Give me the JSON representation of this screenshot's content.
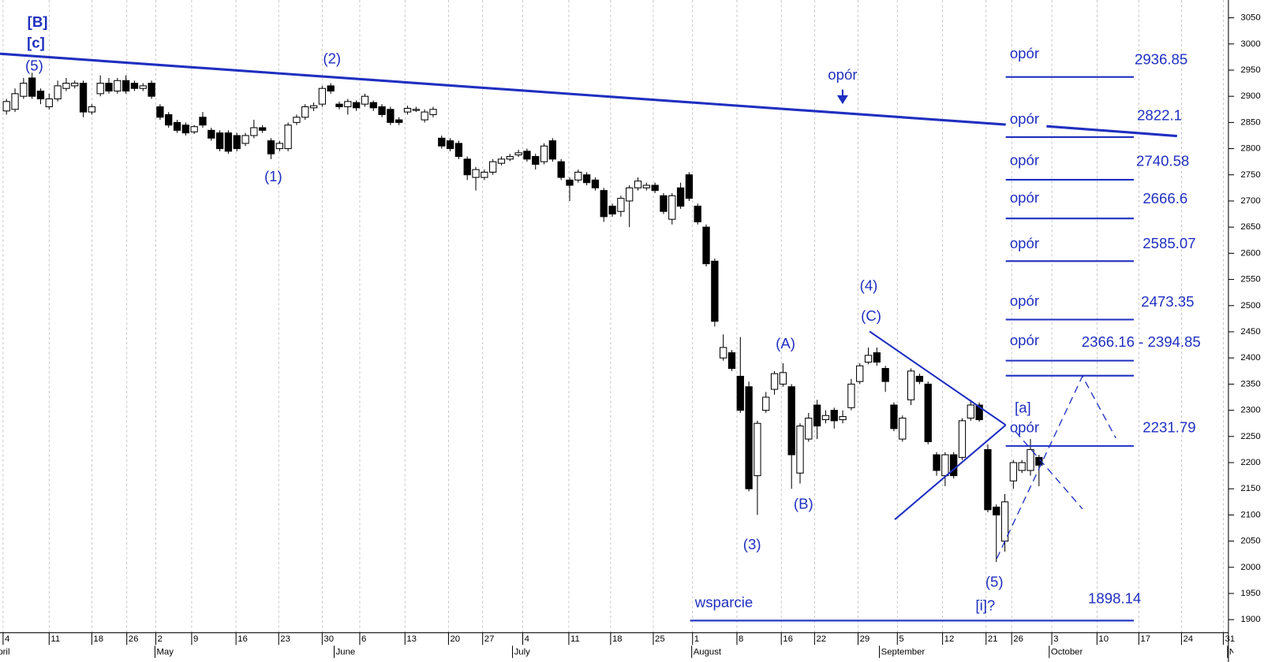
{
  "chart_data": {
    "type": "candlestick",
    "open": [
      2872,
      2875,
      2900,
      2935,
      2910,
      2880,
      2895,
      2915,
      2920,
      2925,
      2870,
      2905,
      2925,
      2910,
      2930,
      2925,
      2915,
      2925,
      2880,
      2865,
      2850,
      2845,
      2832,
      2860,
      2835,
      2830,
      2830,
      2825,
      2810,
      2825,
      2840,
      2815,
      2800,
      2800,
      2850,
      2860,
      2878,
      2885,
      2920,
      2885,
      2880,
      2888,
      2885,
      2888,
      2880,
      2875,
      2855,
      2870,
      2873,
      2855,
      2865,
      2820,
      2815,
      2810,
      2780,
      2745,
      2745,
      2755,
      2772,
      2780,
      2788,
      2795,
      2785,
      2775,
      2815,
      2775,
      2740,
      2740,
      2750,
      2740,
      2720,
      2690,
      2680,
      2700,
      2725,
      2725,
      2730,
      2710,
      2665,
      2725,
      2750,
      2690,
      2650,
      2585,
      2400,
      2410,
      2365,
      2345,
      2175,
      2300,
      2340,
      2350,
      2345,
      2180,
      2245,
      2310,
      2282,
      2300,
      2282,
      2305,
      2355,
      2392,
      2410,
      2380,
      2310,
      2245,
      2320,
      2365,
      2350,
      2215,
      2175,
      2215,
      2210,
      2285,
      2310,
      2225,
      2115,
      2050,
      2165,
      2185,
      2185,
      2210
    ],
    "high": [
      2895,
      2915,
      2935,
      2945,
      2915,
      2905,
      2930,
      2935,
      2930,
      2930,
      2885,
      2940,
      2935,
      2935,
      2940,
      2930,
      2925,
      2930,
      2885,
      2870,
      2855,
      2850,
      2845,
      2870,
      2840,
      2835,
      2835,
      2830,
      2830,
      2855,
      2845,
      2820,
      2815,
      2850,
      2865,
      2885,
      2888,
      2920,
      2925,
      2890,
      2895,
      2892,
      2905,
      2892,
      2885,
      2880,
      2860,
      2882,
      2880,
      2875,
      2880,
      2825,
      2820,
      2815,
      2785,
      2765,
      2760,
      2780,
      2785,
      2790,
      2798,
      2800,
      2790,
      2810,
      2820,
      2780,
      2745,
      2760,
      2755,
      2745,
      2725,
      2695,
      2710,
      2730,
      2745,
      2735,
      2735,
      2715,
      2715,
      2735,
      2755,
      2695,
      2655,
      2590,
      2445,
      2415,
      2440,
      2355,
      2280,
      2335,
      2375,
      2390,
      2350,
      2275,
      2295,
      2320,
      2300,
      2305,
      2300,
      2360,
      2390,
      2420,
      2420,
      2385,
      2315,
      2290,
      2380,
      2370,
      2355,
      2220,
      2220,
      2220,
      2285,
      2320,
      2315,
      2235,
      2120,
      2140,
      2205,
      2205,
      2245,
      2215
    ],
    "low": [
      2865,
      2870,
      2895,
      2895,
      2885,
      2875,
      2890,
      2910,
      2915,
      2860,
      2865,
      2900,
      2905,
      2905,
      2905,
      2910,
      2910,
      2895,
      2855,
      2840,
      2830,
      2825,
      2828,
      2840,
      2815,
      2795,
      2790,
      2795,
      2805,
      2820,
      2830,
      2780,
      2795,
      2795,
      2845,
      2855,
      2872,
      2880,
      2905,
      2875,
      2865,
      2872,
      2880,
      2872,
      2860,
      2845,
      2845,
      2865,
      2870,
      2850,
      2860,
      2800,
      2795,
      2780,
      2740,
      2720,
      2740,
      2750,
      2768,
      2776,
      2784,
      2775,
      2760,
      2770,
      2775,
      2740,
      2700,
      2735,
      2730,
      2720,
      2660,
      2670,
      2670,
      2650,
      2720,
      2720,
      2715,
      2675,
      2655,
      2685,
      2700,
      2655,
      2575,
      2460,
      2395,
      2375,
      2295,
      2145,
      2100,
      2295,
      2330,
      2345,
      2150,
      2160,
      2240,
      2245,
      2275,
      2265,
      2275,
      2300,
      2350,
      2388,
      2385,
      2335,
      2260,
      2240,
      2310,
      2350,
      2235,
      2175,
      2155,
      2170,
      2205,
      2280,
      2278,
      2105,
      2010,
      2030,
      2150,
      2180,
      2175,
      2155
    ],
    "close": [
      2890,
      2905,
      2925,
      2900,
      2895,
      2895,
      2920,
      2925,
      2925,
      2870,
      2880,
      2925,
      2910,
      2930,
      2910,
      2915,
      2920,
      2900,
      2860,
      2845,
      2835,
      2830,
      2842,
      2845,
      2820,
      2800,
      2795,
      2800,
      2825,
      2840,
      2835,
      2790,
      2810,
      2845,
      2860,
      2880,
      2882,
      2915,
      2910,
      2880,
      2890,
      2878,
      2900,
      2878,
      2865,
      2850,
      2850,
      2877,
      2875,
      2870,
      2875,
      2805,
      2800,
      2785,
      2750,
      2760,
      2755,
      2775,
      2780,
      2785,
      2792,
      2780,
      2770,
      2805,
      2780,
      2745,
      2730,
      2755,
      2735,
      2725,
      2670,
      2675,
      2705,
      2725,
      2738,
      2730,
      2720,
      2680,
      2710,
      2690,
      2705,
      2660,
      2580,
      2470,
      2420,
      2380,
      2300,
      2150,
      2275,
      2325,
      2370,
      2372,
      2215,
      2270,
      2285,
      2270,
      2290,
      2280,
      2288,
      2350,
      2385,
      2405,
      2392,
      2355,
      2265,
      2285,
      2375,
      2355,
      2240,
      2185,
      2215,
      2175,
      2280,
      2310,
      2282,
      2110,
      2100,
      2125,
      2200,
      2200,
      2225,
      2195
    ],
    "ylim": [
      1875,
      3084
    ],
    "yticks": [
      1900,
      1950,
      2000,
      2050,
      2100,
      2150,
      2200,
      2250,
      2300,
      2350,
      2400,
      2450,
      2500,
      2550,
      2600,
      2650,
      2700,
      2750,
      2800,
      2850,
      2900,
      2950,
      3000,
      3050
    ],
    "xlim": [
      -0.76,
      143.2
    ],
    "xticks": [
      {
        "value": -0.4,
        "label": "4"
      },
      {
        "value": 5,
        "label": "11"
      },
      {
        "value": 10,
        "label": "18"
      },
      {
        "value": 14.1,
        "label": "26"
      },
      {
        "value": 17.5,
        "label": "2"
      },
      {
        "value": 21.7,
        "label": "9"
      },
      {
        "value": 26.9,
        "label": "16"
      },
      {
        "value": 31.9,
        "label": "23"
      },
      {
        "value": 37,
        "label": "30"
      },
      {
        "value": 41.4,
        "label": "6"
      },
      {
        "value": 46.7,
        "label": "13"
      },
      {
        "value": 51.8,
        "label": "20"
      },
      {
        "value": 55.8,
        "label": "27"
      },
      {
        "value": 60.5,
        "label": "4"
      },
      {
        "value": 65.9,
        "label": "11"
      },
      {
        "value": 70.8,
        "label": "18"
      },
      {
        "value": 75.8,
        "label": "25"
      },
      {
        "value": 80.4,
        "label": "1"
      },
      {
        "value": 85.6,
        "label": "8"
      },
      {
        "value": 90.8,
        "label": "16"
      },
      {
        "value": 94.7,
        "label": "22"
      },
      {
        "value": 99.8,
        "label": "29"
      },
      {
        "value": 104.4,
        "label": "5"
      },
      {
        "value": 109.7,
        "label": "12"
      },
      {
        "value": 114.8,
        "label": "21"
      },
      {
        "value": 117.8,
        "label": "26"
      },
      {
        "value": 122.5,
        "label": "3"
      },
      {
        "value": 127.8,
        "label": "10"
      },
      {
        "value": 132.7,
        "label": "17"
      },
      {
        "value": 137.7,
        "label": "24"
      },
      {
        "value": 142.6,
        "label": "31"
      }
    ],
    "months": [
      {
        "value": -1.9,
        "label": "April"
      },
      {
        "value": 17.4,
        "label": "May"
      },
      {
        "value": 38.4,
        "label": "June"
      },
      {
        "value": 59.3,
        "label": "July"
      },
      {
        "value": 80.3,
        "label": "August"
      },
      {
        "value": 102.3,
        "label": "September"
      },
      {
        "value": 122.2,
        "label": "October"
      },
      {
        "value": 143.1,
        "label": "November"
      }
    ],
    "grid": true,
    "color": "#1f2fc0",
    "levels": [
      {
        "label": "opór",
        "values": [
          2936.85
        ]
      },
      {
        "label": "opór",
        "values": [
          2822.1
        ]
      },
      {
        "label": "opór",
        "values": [
          2740.58
        ]
      },
      {
        "label": "opór",
        "values": [
          2666.6
        ]
      },
      {
        "label": "opór",
        "values": [
          2585.07
        ]
      },
      {
        "label": "opór",
        "values": [
          2473.35
        ]
      },
      {
        "label": "opór",
        "values": [
          2366.16,
          2394.85
        ],
        "value_label": "2366.16 - 2394.85"
      },
      {
        "label": "opór",
        "values": [
          2231.79
        ]
      }
    ],
    "support": {
      "label": "wsparcie",
      "values": [
        1898.14
      ]
    },
    "annotations": [
      "[B]",
      "[c]",
      "(5)",
      "(2)",
      "(1)",
      "opór",
      "(4)",
      "(C)",
      "(A)",
      "(B)",
      "(3)",
      "(5)",
      "[i]?",
      "[a]"
    ]
  }
}
